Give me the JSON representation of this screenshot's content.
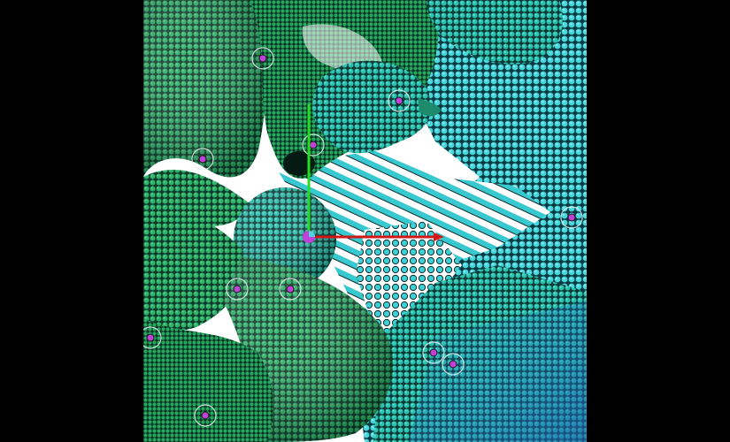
{
  "viewer": {
    "background": "#000000",
    "canvas_background": "#ffffff",
    "palette": {
      "green_dark": "#1f8f4a",
      "green": "#2fb36a",
      "teal": "#25b8a8",
      "cyan": "#3fd6d8",
      "blue": "#2a78c9",
      "ball_outline": "#0a2a28",
      "marker_fill": "#c040d8"
    }
  },
  "gizmo": {
    "x_axis_color": "#d01818",
    "y_axis_color": "#22dd22",
    "origin_color": "#c040d8"
  },
  "markers": {
    "count": 11,
    "color": "#c040d8",
    "ring_color": "#e6f0ee"
  }
}
